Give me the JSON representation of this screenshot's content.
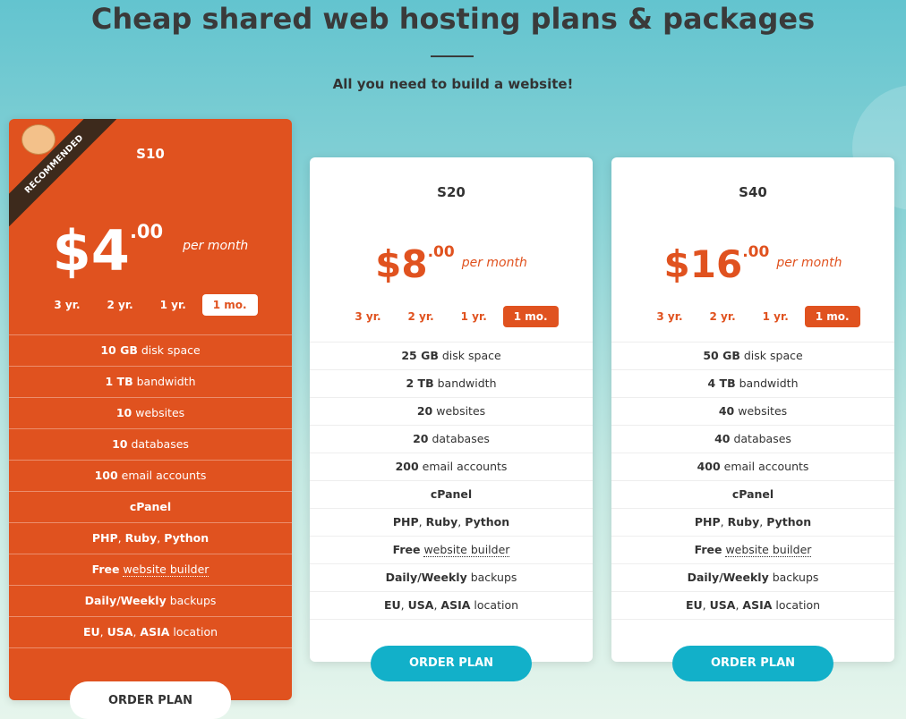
{
  "header": {
    "title": "Cheap shared web hosting plans & packages",
    "subtitle": "All you need to build a website!"
  },
  "plans": [
    {
      "name": "S10",
      "recommended": "RECOMMENDED",
      "featured": true,
      "price": "$4",
      "cents": ".00",
      "period": "per month",
      "terms": [
        "3 yr.",
        "2 yr.",
        "1 yr.",
        "1 mo."
      ],
      "active_term": 3,
      "features": [
        [
          {
            "text": "10 GB",
            "style": "bold"
          },
          {
            "text": "disk space",
            "style": "normal"
          }
        ],
        [
          {
            "text": "1 TB",
            "style": "bold"
          },
          {
            "text": "bandwidth",
            "style": "normal"
          }
        ],
        [
          {
            "text": "10",
            "style": "bold"
          },
          {
            "text": "websites",
            "style": "normal"
          }
        ],
        [
          {
            "text": "10",
            "style": "bold"
          },
          {
            "text": "databases",
            "style": "normal"
          }
        ],
        [
          {
            "text": "100",
            "style": "bold"
          },
          {
            "text": "email accounts",
            "style": "normal"
          }
        ],
        [
          {
            "text": "cPanel",
            "style": "bold"
          }
        ],
        [
          {
            "text": "PHP",
            "style": "bold"
          },
          {
            "text": ",",
            "style": "normal"
          },
          {
            "text": "Ruby",
            "style": "bold"
          },
          {
            "text": ",",
            "style": "normal"
          },
          {
            "text": "Python",
            "style": "bold"
          }
        ],
        [
          {
            "text": "Free",
            "style": "bold"
          },
          {
            "text": "website builder",
            "style": "dotted"
          }
        ],
        [
          {
            "text": "Daily/Weekly",
            "style": "bold"
          },
          {
            "text": "backups",
            "style": "normal"
          }
        ],
        [
          {
            "text": "EU",
            "style": "bold"
          },
          {
            "text": ",",
            "style": "normal"
          },
          {
            "text": "USA",
            "style": "bold"
          },
          {
            "text": ",",
            "style": "normal"
          },
          {
            "text": "ASIA",
            "style": "bold"
          },
          {
            "text": "location",
            "style": "normal"
          }
        ]
      ],
      "button": "ORDER PLAN"
    },
    {
      "name": "S20",
      "featured": false,
      "price": "$8",
      "cents": ".00",
      "period": "per month",
      "terms": [
        "3 yr.",
        "2 yr.",
        "1 yr.",
        "1 mo."
      ],
      "active_term": 3,
      "features": [
        [
          {
            "text": "25 GB",
            "style": "bold"
          },
          {
            "text": "disk space",
            "style": "normal"
          }
        ],
        [
          {
            "text": "2 TB",
            "style": "bold"
          },
          {
            "text": "bandwidth",
            "style": "normal"
          }
        ],
        [
          {
            "text": "20",
            "style": "bold"
          },
          {
            "text": "websites",
            "style": "normal"
          }
        ],
        [
          {
            "text": "20",
            "style": "bold"
          },
          {
            "text": "databases",
            "style": "normal"
          }
        ],
        [
          {
            "text": "200",
            "style": "bold"
          },
          {
            "text": "email accounts",
            "style": "normal"
          }
        ],
        [
          {
            "text": "cPanel",
            "style": "bold"
          }
        ],
        [
          {
            "text": "PHP",
            "style": "bold"
          },
          {
            "text": ",",
            "style": "normal"
          },
          {
            "text": "Ruby",
            "style": "bold"
          },
          {
            "text": ",",
            "style": "normal"
          },
          {
            "text": "Python",
            "style": "bold"
          }
        ],
        [
          {
            "text": "Free",
            "style": "bold"
          },
          {
            "text": "website builder",
            "style": "dotted"
          }
        ],
        [
          {
            "text": "Daily/Weekly",
            "style": "bold"
          },
          {
            "text": "backups",
            "style": "normal"
          }
        ],
        [
          {
            "text": "EU",
            "style": "bold"
          },
          {
            "text": ",",
            "style": "normal"
          },
          {
            "text": "USA",
            "style": "bold"
          },
          {
            "text": ",",
            "style": "normal"
          },
          {
            "text": "ASIA",
            "style": "bold"
          },
          {
            "text": "location",
            "style": "normal"
          }
        ]
      ],
      "button": "ORDER PLAN"
    },
    {
      "name": "S40",
      "featured": false,
      "price": "$16",
      "cents": ".00",
      "period": "per month",
      "terms": [
        "3 yr.",
        "2 yr.",
        "1 yr.",
        "1 mo."
      ],
      "active_term": 3,
      "features": [
        [
          {
            "text": "50 GB",
            "style": "bold"
          },
          {
            "text": "disk space",
            "style": "normal"
          }
        ],
        [
          {
            "text": "4 TB",
            "style": "bold"
          },
          {
            "text": "bandwidth",
            "style": "normal"
          }
        ],
        [
          {
            "text": "40",
            "style": "bold"
          },
          {
            "text": "websites",
            "style": "normal"
          }
        ],
        [
          {
            "text": "40",
            "style": "bold"
          },
          {
            "text": "databases",
            "style": "normal"
          }
        ],
        [
          {
            "text": "400",
            "style": "bold"
          },
          {
            "text": "email accounts",
            "style": "normal"
          }
        ],
        [
          {
            "text": "cPanel",
            "style": "bold"
          }
        ],
        [
          {
            "text": "PHP",
            "style": "bold"
          },
          {
            "text": ",",
            "style": "normal"
          },
          {
            "text": "Ruby",
            "style": "bold"
          },
          {
            "text": ",",
            "style": "normal"
          },
          {
            "text": "Python",
            "style": "bold"
          }
        ],
        [
          {
            "text": "Free",
            "style": "bold"
          },
          {
            "text": "website builder",
            "style": "dotted"
          }
        ],
        [
          {
            "text": "Daily/Weekly",
            "style": "bold"
          },
          {
            "text": "backups",
            "style": "normal"
          }
        ],
        [
          {
            "text": "EU",
            "style": "bold"
          },
          {
            "text": ",",
            "style": "normal"
          },
          {
            "text": "USA",
            "style": "bold"
          },
          {
            "text": ",",
            "style": "normal"
          },
          {
            "text": "ASIA",
            "style": "bold"
          },
          {
            "text": "location",
            "style": "normal"
          }
        ]
      ],
      "button": "ORDER PLAN"
    }
  ]
}
